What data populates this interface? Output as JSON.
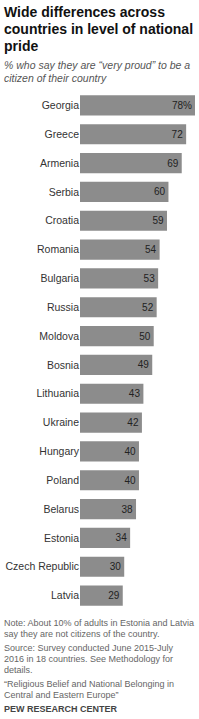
{
  "chart_data": {
    "type": "bar",
    "title": "Wide differences across countries in level of national pride",
    "subtitle": "% who say they are “very proud” to be a citizen of their country",
    "categories": [
      "Georgia",
      "Greece",
      "Armenia",
      "Serbia",
      "Croatia",
      "Romania",
      "Bulgaria",
      "Russia",
      "Moldova",
      "Bosnia",
      "Lithuania",
      "Ukraine",
      "Hungary",
      "Poland",
      "Belarus",
      "Estonia",
      "Czech Republic",
      "Latvia"
    ],
    "values": [
      78,
      72,
      69,
      60,
      59,
      54,
      53,
      52,
      50,
      49,
      43,
      42,
      40,
      40,
      38,
      34,
      30,
      29
    ],
    "value_labels": [
      "78%",
      "72",
      "69",
      "60",
      "59",
      "54",
      "53",
      "52",
      "50",
      "49",
      "43",
      "42",
      "40",
      "40",
      "38",
      "34",
      "30",
      "29"
    ],
    "color": "#8c8c8c",
    "orientation": "horizontal",
    "data_labels": true,
    "tick_labels": "y",
    "grid": false,
    "notes": [
      "Note: About 10% of adults in Estonia and Latvia say they are not citizens of the country.",
      "Source: Survey conducted June 2015-July 2016 in 18 countries. See Methodology for details.",
      "“Religious Belief and National Belonging in Central and Eastern Europe”",
      "PEW RESEARCH CENTER"
    ]
  }
}
